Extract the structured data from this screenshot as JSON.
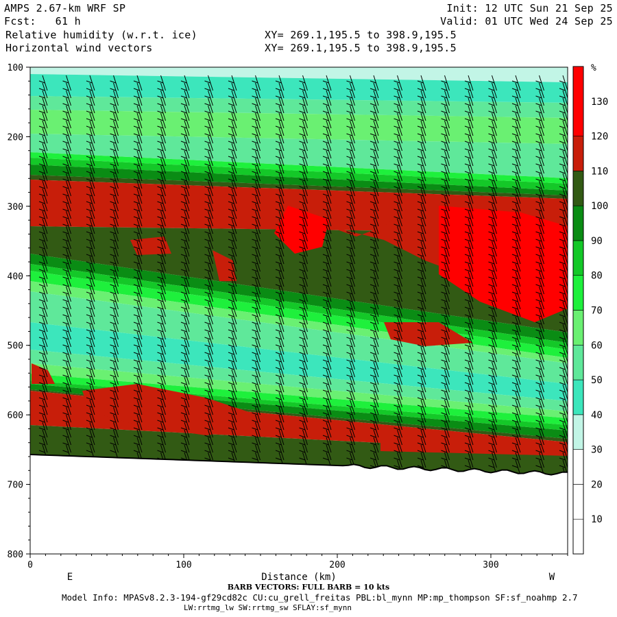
{
  "header": {
    "model": "AMPS 2.67-km WRF SP",
    "forecast": "Fcst:   61 h",
    "init": "Init: 12 UTC Sun 21 Sep 25",
    "valid": "Valid: 01 UTC Wed 24 Sep 25",
    "field1": "Relative humidity (w.r.t. ice)",
    "field2": "Horizontal wind vectors",
    "xy1": "XY= 269.1,195.5 to 398.9,195.5",
    "xy2": "XY= 269.1,195.5 to 398.9,195.5"
  },
  "footer": {
    "barb_note": "BARB VECTORS:  FULL BARB = 10 kts",
    "model_info": "Model Info: MPASv8.2.3-194-gf29cd82c CU:cu_grell_freitas PBL:bl_mynn MP:mp_thompson SF:sf_noahmp 2.7",
    "model_info2": "LW:rrtmg_lw SW:rrtmg_sw SFLAY:sf_mynn"
  },
  "chart_data": {
    "type": "heatmap",
    "xlabel": "Distance (km)",
    "x_ticks": [
      "0",
      "100",
      "200",
      "300"
    ],
    "xlim": [
      0,
      350
    ],
    "y_ticks": [
      "100",
      "200",
      "300",
      "400",
      "500",
      "600",
      "700",
      "800"
    ],
    "ylim": [
      100,
      800
    ],
    "y_inverted": true,
    "orientation_left": "E",
    "orientation_right": "W",
    "colorbar": {
      "unit": "%",
      "labels": [
        "10",
        "20",
        "30",
        "40",
        "50",
        "60",
        "70",
        "80",
        "90",
        "100",
        "110",
        "120",
        "130"
      ],
      "bins": [
        {
          "from": 0,
          "to": 10,
          "color": "#ffffff"
        },
        {
          "from": 10,
          "to": 20,
          "color": "#ffffff"
        },
        {
          "from": 20,
          "to": 30,
          "color": "#ffffff"
        },
        {
          "from": 30,
          "to": 40,
          "color": "#c2f5e6"
        },
        {
          "from": 40,
          "to": 50,
          "color": "#3ce6bc"
        },
        {
          "from": 50,
          "to": 60,
          "color": "#5fe89a"
        },
        {
          "from": 60,
          "to": 70,
          "color": "#6af072"
        },
        {
          "from": 70,
          "to": 80,
          "color": "#1ef03c"
        },
        {
          "from": 80,
          "to": 90,
          "color": "#14c828"
        },
        {
          "from": 90,
          "to": 100,
          "color": "#0a8c14"
        },
        {
          "from": 100,
          "to": 110,
          "color": "#325a14"
        },
        {
          "from": 110,
          "to": 120,
          "color": "#c81e0a"
        },
        {
          "from": 120,
          "to": 140,
          "color": "#ff0000"
        }
      ]
    },
    "wind_barbs": "FULL BARB = 10 kts"
  }
}
